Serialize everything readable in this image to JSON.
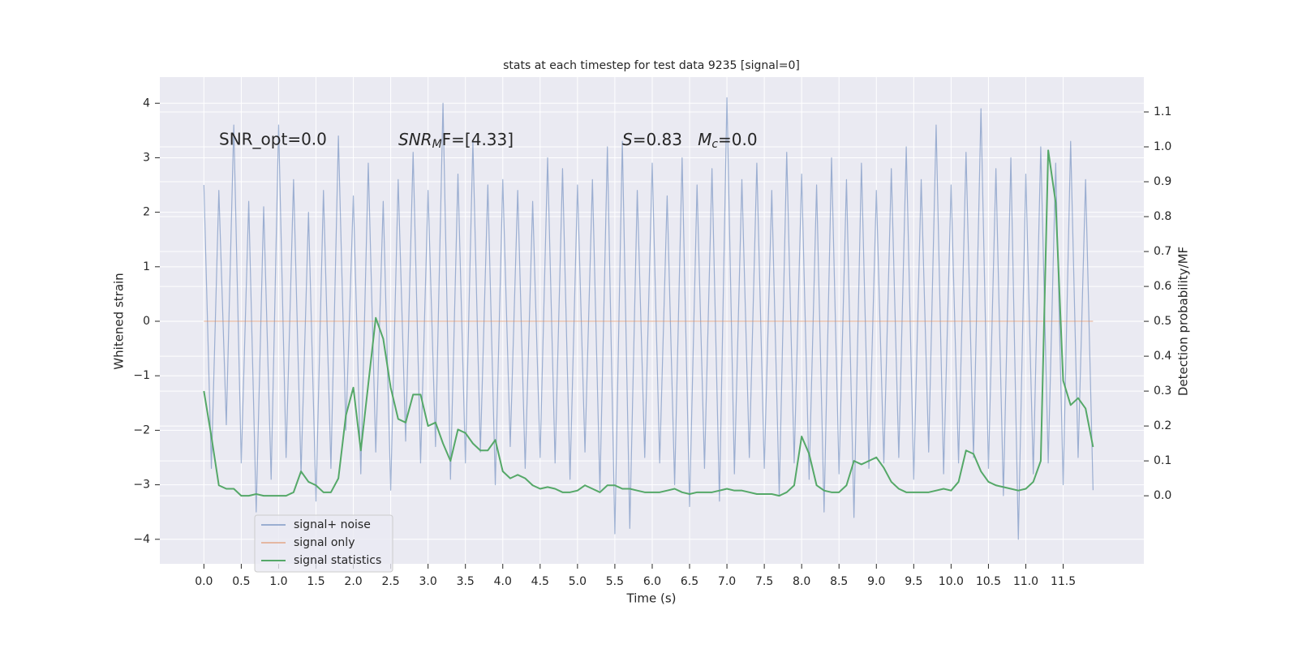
{
  "chart_data": {
    "type": "line",
    "title": "stats at each timestep for test data 9235 [signal=0]",
    "xlabel": "Time (s)",
    "ylabel": "Whitened strain",
    "y2label": "Detection probability/MF",
    "annotations": [
      "SNR_opt=0.0",
      {
        "parts": [
          "SNR",
          "M",
          "F=[4.33]"
        ]
      },
      {
        "parts": [
          "S",
          "=0.83   ",
          "M",
          "c",
          "=0.0"
        ]
      }
    ],
    "x": [
      0.0,
      0.1,
      0.2,
      0.3,
      0.4,
      0.5,
      0.6,
      0.7,
      0.8,
      0.9,
      1.0,
      1.1,
      1.2,
      1.3,
      1.4,
      1.5,
      1.6,
      1.7,
      1.8,
      1.9,
      2.0,
      2.1,
      2.2,
      2.3,
      2.4,
      2.5,
      2.6,
      2.7,
      2.8,
      2.9,
      3.0,
      3.1,
      3.2,
      3.3,
      3.4,
      3.5,
      3.6,
      3.7,
      3.8,
      3.9,
      4.0,
      4.1,
      4.2,
      4.3,
      4.4,
      4.5,
      4.6,
      4.7,
      4.8,
      4.9,
      5.0,
      5.1,
      5.2,
      5.3,
      5.4,
      5.5,
      5.6,
      5.7,
      5.8,
      5.9,
      6.0,
      6.1,
      6.2,
      6.3,
      6.4,
      6.5,
      6.6,
      6.7,
      6.8,
      6.9,
      7.0,
      7.1,
      7.2,
      7.3,
      7.4,
      7.5,
      7.6,
      7.7,
      7.8,
      7.9,
      8.0,
      8.1,
      8.2,
      8.3,
      8.4,
      8.5,
      8.6,
      8.7,
      8.8,
      8.9,
      9.0,
      9.1,
      9.2,
      9.3,
      9.4,
      9.5,
      9.6,
      9.7,
      9.8,
      9.9,
      10.0,
      10.1,
      10.2,
      10.3,
      10.4,
      10.5,
      10.6,
      10.7,
      10.8,
      10.9,
      11.0,
      11.1,
      11.2,
      11.3,
      11.4,
      11.5,
      11.6,
      11.7,
      11.8,
      11.9
    ],
    "series": [
      {
        "name": "signal+ noise",
        "color": "#4c72b0",
        "opacity": 0.5,
        "values": [
          2.5,
          -2.7,
          2.4,
          -1.9,
          3.6,
          -2.6,
          2.2,
          -3.5,
          2.1,
          -2.9,
          3.6,
          -2.5,
          2.6,
          -2.8,
          2.0,
          -3.3,
          2.4,
          -2.7,
          3.4,
          -2.0,
          2.3,
          -2.8,
          2.9,
          -2.4,
          2.2,
          -3.1,
          2.6,
          -2.2,
          3.1,
          -2.6,
          2.4,
          -2.3,
          4.0,
          -2.9,
          2.7,
          -2.6,
          3.3,
          -2.4,
          2.5,
          -3.0,
          2.6,
          -2.3,
          2.4,
          -2.7,
          2.2,
          -2.5,
          3.0,
          -2.6,
          2.8,
          -2.9,
          2.5,
          -2.4,
          2.6,
          -3.1,
          3.2,
          -3.9,
          3.3,
          -3.8,
          2.4,
          -2.5,
          2.9,
          -2.6,
          2.3,
          -3.0,
          3.0,
          -3.4,
          2.5,
          -2.7,
          2.8,
          -3.3,
          4.1,
          -2.8,
          2.6,
          -2.5,
          2.9,
          -2.7,
          2.4,
          -3.2,
          3.1,
          -2.6,
          2.7,
          -2.9,
          2.5,
          -3.5,
          3.0,
          -2.8,
          2.6,
          -3.6,
          2.9,
          -2.7,
          2.4,
          -2.6,
          2.8,
          -2.5,
          3.2,
          -2.9,
          2.6,
          -2.4,
          3.6,
          -2.8,
          2.5,
          -2.6,
          3.1,
          -2.5,
          3.9,
          -2.7,
          2.8,
          -3.2,
          3.0,
          -4.0,
          2.7,
          -2.8,
          3.2,
          -2.6,
          2.9,
          -3.0,
          3.3,
          -2.5,
          2.6,
          -3.1
        ]
      },
      {
        "name": "signal only",
        "color": "#dd8452",
        "opacity": 0.5,
        "values": [
          0,
          0,
          0,
          0,
          0,
          0,
          0,
          0,
          0,
          0,
          0,
          0,
          0,
          0,
          0,
          0,
          0,
          0,
          0,
          0,
          0,
          0,
          0,
          0,
          0,
          0,
          0,
          0,
          0,
          0,
          0,
          0,
          0,
          0,
          0,
          0,
          0,
          0,
          0,
          0,
          0,
          0,
          0,
          0,
          0,
          0,
          0,
          0,
          0,
          0,
          0,
          0,
          0,
          0,
          0,
          0,
          0,
          0,
          0,
          0,
          0,
          0,
          0,
          0,
          0,
          0,
          0,
          0,
          0,
          0,
          0,
          0,
          0,
          0,
          0,
          0,
          0,
          0,
          0,
          0,
          0,
          0,
          0,
          0,
          0,
          0,
          0,
          0,
          0,
          0,
          0,
          0,
          0,
          0,
          0,
          0,
          0,
          0,
          0,
          0,
          0,
          0,
          0,
          0,
          0,
          0,
          0,
          0,
          0,
          0,
          0,
          0,
          0,
          0,
          0,
          0,
          0,
          0,
          0,
          0
        ]
      },
      {
        "name": "signal statistics",
        "color": "#55a868",
        "opacity": 1,
        "axis": "y2",
        "values": [
          0.3,
          0.17,
          0.03,
          0.02,
          0.02,
          0.0,
          0.0,
          0.005,
          0.0,
          0.0,
          0.0,
          0.0,
          0.01,
          0.07,
          0.04,
          0.03,
          0.01,
          0.01,
          0.05,
          0.23,
          0.31,
          0.13,
          0.32,
          0.51,
          0.45,
          0.31,
          0.22,
          0.21,
          0.29,
          0.29,
          0.2,
          0.21,
          0.15,
          0.1,
          0.19,
          0.18,
          0.15,
          0.13,
          0.13,
          0.16,
          0.07,
          0.05,
          0.06,
          0.05,
          0.03,
          0.02,
          0.025,
          0.02,
          0.01,
          0.01,
          0.015,
          0.03,
          0.02,
          0.01,
          0.03,
          0.03,
          0.02,
          0.02,
          0.015,
          0.01,
          0.01,
          0.01,
          0.015,
          0.02,
          0.01,
          0.005,
          0.01,
          0.01,
          0.01,
          0.015,
          0.02,
          0.015,
          0.015,
          0.01,
          0.005,
          0.005,
          0.005,
          0.0,
          0.01,
          0.03,
          0.17,
          0.12,
          0.03,
          0.015,
          0.01,
          0.01,
          0.03,
          0.1,
          0.09,
          0.1,
          0.11,
          0.08,
          0.04,
          0.02,
          0.01,
          0.01,
          0.01,
          0.01,
          0.015,
          0.02,
          0.015,
          0.04,
          0.13,
          0.12,
          0.07,
          0.04,
          0.03,
          0.025,
          0.02,
          0.015,
          0.02,
          0.04,
          0.1,
          0.99,
          0.84,
          0.33,
          0.26,
          0.28,
          0.25,
          0.14
        ]
      }
    ],
    "xlim": [
      -0.59,
      12.58
    ],
    "ylim": [
      -4.45,
      4.48
    ],
    "y2lim": [
      -0.195,
      1.2
    ],
    "xticks": [
      {
        "value": 0,
        "label": "0.0"
      },
      {
        "value": 0.5,
        "label": "0.5"
      },
      {
        "value": 1,
        "label": "1.0"
      },
      {
        "value": 1.5,
        "label": "1.5"
      },
      {
        "value": 2,
        "label": "2.0"
      },
      {
        "value": 2.5,
        "label": "2.5"
      },
      {
        "value": 3,
        "label": "3.0"
      },
      {
        "value": 3.5,
        "label": "3.5"
      },
      {
        "value": 4,
        "label": "4.0"
      },
      {
        "value": 4.5,
        "label": "4.5"
      },
      {
        "value": 5,
        "label": "5.0"
      },
      {
        "value": 5.5,
        "label": "5.5"
      },
      {
        "value": 6,
        "label": "6.0"
      },
      {
        "value": 6.5,
        "label": "6.5"
      },
      {
        "value": 7,
        "label": "7.0"
      },
      {
        "value": 7.5,
        "label": "7.5"
      },
      {
        "value": 8,
        "label": "8.0"
      },
      {
        "value": 8.5,
        "label": "8.5"
      },
      {
        "value": 9,
        "label": "9.0"
      },
      {
        "value": 9.5,
        "label": "9.5"
      },
      {
        "value": 10,
        "label": "10.0"
      },
      {
        "value": 10.5,
        "label": "10.5"
      },
      {
        "value": 11,
        "label": "11.0"
      },
      {
        "value": 11.5,
        "label": "11.5"
      }
    ],
    "yticks": [
      {
        "value": -4,
        "label": "−4"
      },
      {
        "value": -3,
        "label": "−3"
      },
      {
        "value": -2,
        "label": "−2"
      },
      {
        "value": -1,
        "label": "−1"
      },
      0,
      1,
      2,
      3,
      4
    ],
    "y2ticks": [
      {
        "value": 0,
        "label": "0.0"
      },
      {
        "value": 0.1,
        "label": "0.1"
      },
      {
        "value": 0.2,
        "label": "0.2"
      },
      {
        "value": 0.3,
        "label": "0.3"
      },
      {
        "value": 0.4,
        "label": "0.4"
      },
      {
        "value": 0.5,
        "label": "0.5"
      },
      {
        "value": 0.6,
        "label": "0.6"
      },
      {
        "value": 0.7,
        "label": "0.7"
      },
      {
        "value": 0.8,
        "label": "0.8"
      },
      {
        "value": 0.9,
        "label": "0.9"
      },
      {
        "value": 1,
        "label": "1.0"
      },
      {
        "value": 1.1,
        "label": "1.1"
      }
    ],
    "grid": true,
    "legend": "lower left"
  }
}
